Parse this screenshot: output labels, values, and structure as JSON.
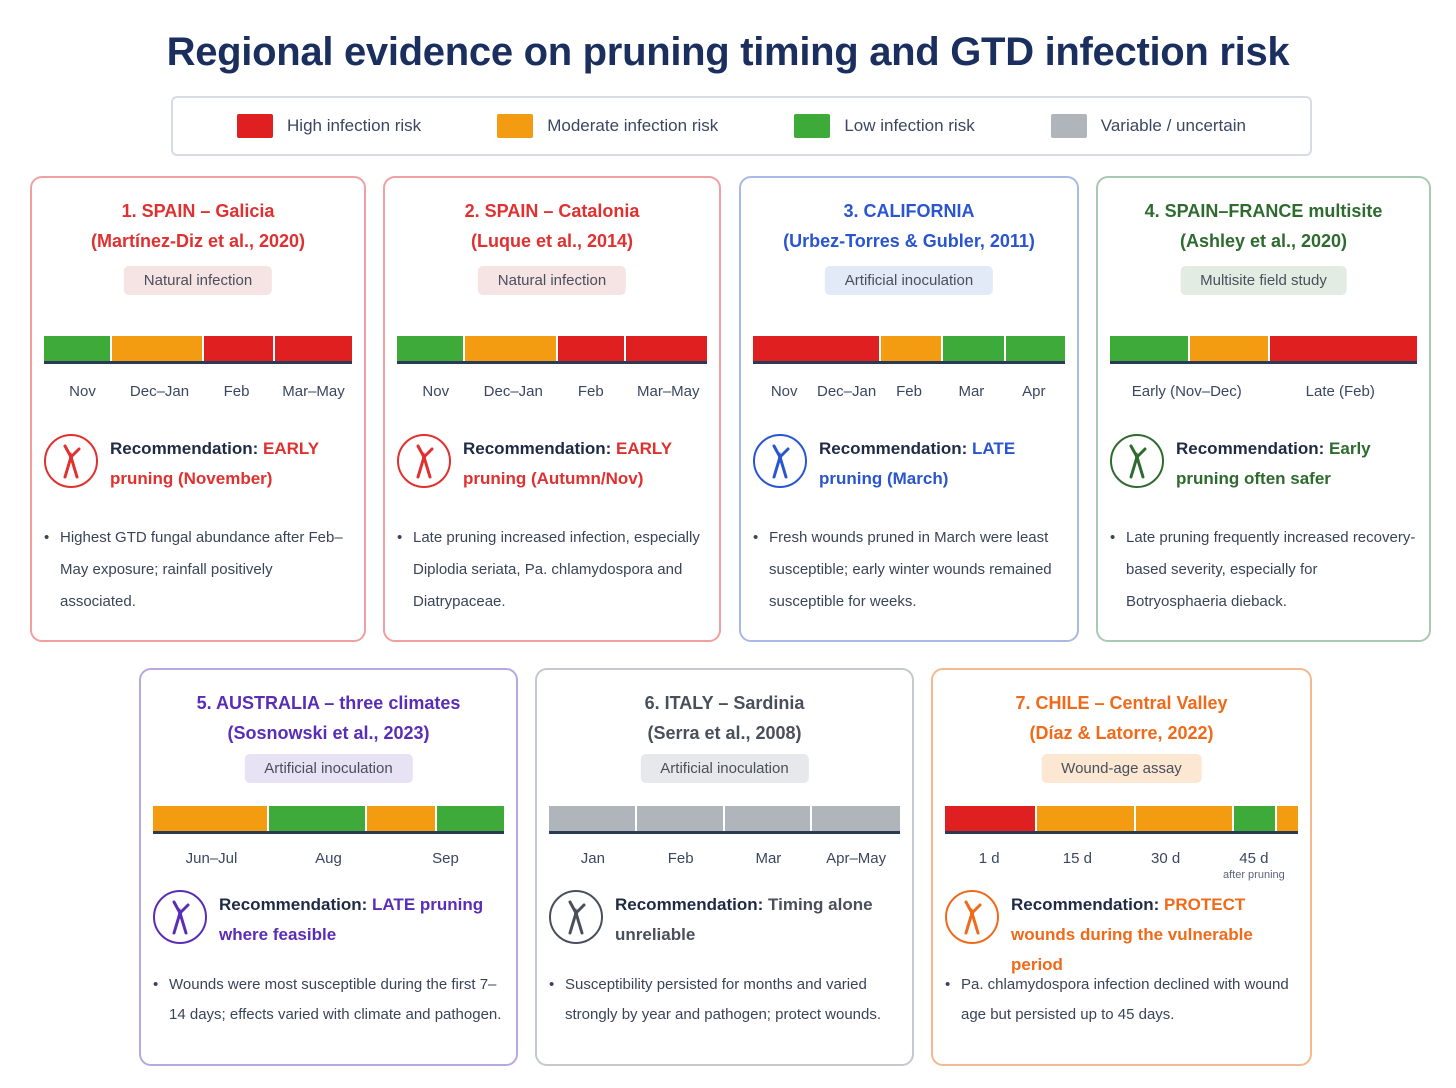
{
  "title": "Regional evidence on pruning timing and GTD infection risk",
  "colors": {
    "high": "#e02020",
    "moderate": "#f39c12",
    "low": "#3eaa3a",
    "variable": "#b0b4bb"
  },
  "legend": [
    {
      "key": "high",
      "label": "High infection risk"
    },
    {
      "key": "moderate",
      "label": "Moderate infection risk"
    },
    {
      "key": "low",
      "label": "Low infection risk"
    },
    {
      "key": "variable",
      "label": "Variable / uncertain"
    }
  ],
  "cards": [
    {
      "region": "1. SPAIN – Galicia",
      "citation": "(Martínez-Diz et al., 2020)",
      "study_type": "Natural infection",
      "accent": "#e03030",
      "border": "#f0a0a0",
      "badge_bg": "#f6e3e3",
      "segments": [
        "low",
        "moderate",
        "high",
        "high"
      ],
      "ticks": [
        "Nov",
        "Dec–Jan",
        "Feb",
        "Mar–May"
      ],
      "rec_label": "Recommendation:",
      "rec_value": "EARLY pruning (November)",
      "note": "Highest GTD fungal abundance after Feb–May exposure; rainfall positively associated."
    },
    {
      "region": "2. SPAIN – Catalonia",
      "citation": "(Luque et al., 2014)",
      "study_type": "Natural infection",
      "accent": "#e03030",
      "border": "#f0a0a0",
      "badge_bg": "#f6e3e3",
      "segments": [
        "low",
        "moderate",
        "high",
        "high"
      ],
      "ticks": [
        "Nov",
        "Dec–Jan",
        "Feb",
        "Mar–May"
      ],
      "rec_label": "Recommendation:",
      "rec_value": "EARLY pruning (Autumn/Nov)",
      "note": "Late pruning increased infection, especially Diplodia seriata, Pa. chlamydospora and Diatrypaceae."
    },
    {
      "region": "3. CALIFORNIA",
      "citation": "(Urbez-Torres & Gubler, 2011)",
      "study_type": "Artificial inoculation",
      "accent": "#2a55d0",
      "border": "#a9b8e6",
      "badge_bg": "#e2e9f7",
      "segments": [
        "high",
        "moderate",
        "low",
        "low"
      ],
      "ticks": [
        "Nov",
        "Dec–Jan",
        "Feb",
        "Mar",
        "Apr"
      ],
      "rec_label": "Recommendation:",
      "rec_value": "LATE pruning (March)",
      "note": "Fresh wounds pruned in March were least susceptible; early winter wounds remained susceptible for weeks."
    },
    {
      "region": "4. SPAIN–FRANCE multisite",
      "citation": "(Ashley et al., 2020)",
      "study_type": "Multisite field study",
      "accent": "#2f6b2f",
      "border": "#a9c9b1",
      "badge_bg": "#e3ece3",
      "segments": [
        "low",
        "moderate",
        "high"
      ],
      "ticks": [
        "Early (Nov–Dec)",
        "Late (Feb)"
      ],
      "rec_label": "Recommendation:",
      "rec_value": "Early pruning often safer",
      "note": "Late pruning frequently increased recovery-based severity, especially for Botryosphaeria dieback."
    },
    {
      "region": "5. AUSTRALIA – three climates",
      "citation": "(Sosnowski et al., 2023)",
      "study_type": "Artificial inoculation",
      "accent": "#5a2db8",
      "border": "#b7a9e0",
      "badge_bg": "#e7e2f4",
      "segments": [
        "moderate",
        "low",
        "moderate",
        "low"
      ],
      "ticks": [
        "Jun–Jul",
        "Aug",
        "Sep"
      ],
      "rec_label": "Recommendation:",
      "rec_value": "LATE pruning where feasible",
      "note": "Wounds were most susceptible during the first 7–14 days; effects varied with climate and pathogen."
    },
    {
      "region": "6. ITALY – Sardinia",
      "citation": "(Serra et al., 2008)",
      "study_type": "Artificial inoculation",
      "accent": "#4a4f5c",
      "border": "#c4c8cf",
      "badge_bg": "#e6e8eb",
      "segments": [
        "variable",
        "variable",
        "variable",
        "variable"
      ],
      "ticks": [
        "Jan",
        "Feb",
        "Mar",
        "Apr–May"
      ],
      "rec_label": "Recommendation:",
      "rec_value": "Timing alone unreliable",
      "note": "Susceptibility persisted for months and varied strongly by year and pathogen; protect wounds."
    },
    {
      "region": "7. CHILE – Central Valley",
      "citation": "(Díaz & Latorre, 2022)",
      "study_type": "Wound-age assay",
      "accent": "#f06a1a",
      "border": "#f4b98e",
      "badge_bg": "#fbe7d2",
      "segments": [
        "high",
        "moderate",
        "moderate",
        "low",
        "moderate"
      ],
      "ticks": [
        "1 d",
        "15 d",
        "30 d",
        "45 d"
      ],
      "tick_note": "after pruning",
      "rec_label": "Recommendation:",
      "rec_value": "PROTECT wounds during the vulnerable period",
      "note": "Pa. chlamydospora infection declined with wound age but persisted up to 45 days."
    }
  ]
}
